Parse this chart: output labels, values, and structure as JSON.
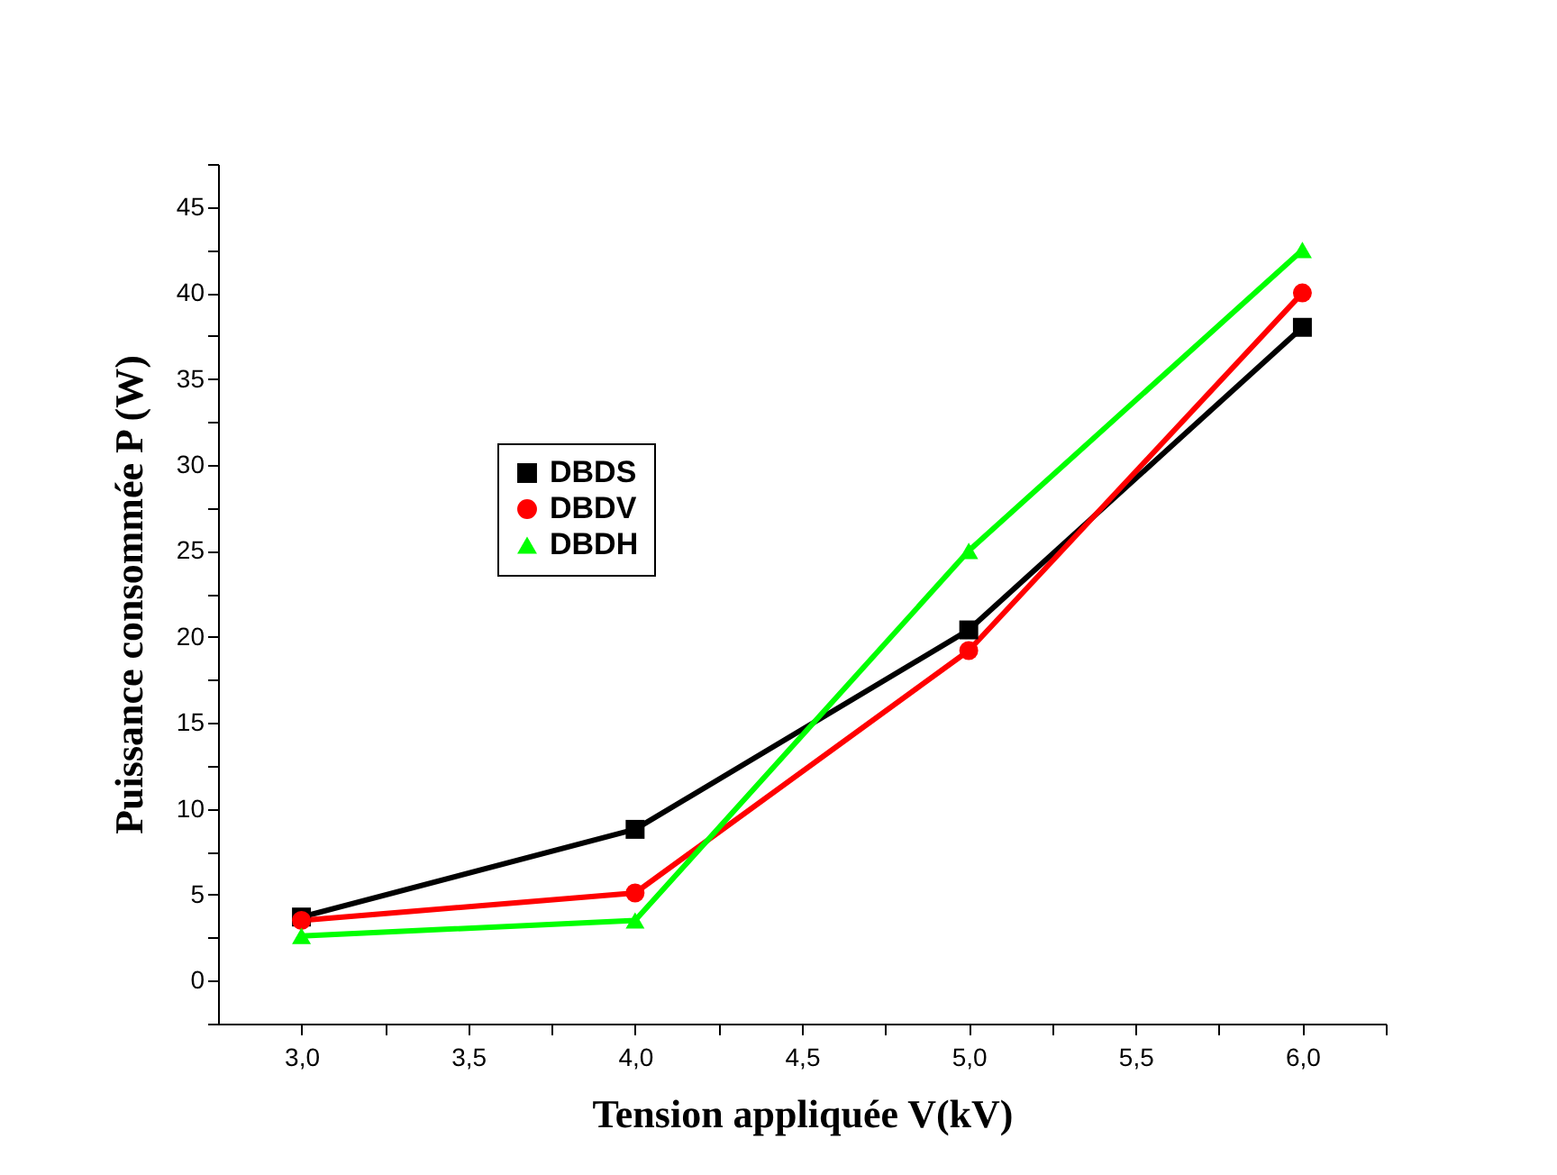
{
  "chart_data": {
    "type": "line",
    "xlabel": "Tension appliquée V(kV)",
    "ylabel": "Puissance consommée P (W)",
    "x": [
      3,
      4,
      5,
      6
    ],
    "series": [
      {
        "name": "DBDS",
        "color": "#000000",
        "marker": "square",
        "values": [
          3.7,
          8.8,
          20.4,
          38.0
        ]
      },
      {
        "name": "DBDV",
        "color": "#ff0000",
        "marker": "circle",
        "values": [
          3.5,
          5.1,
          19.2,
          40.0
        ]
      },
      {
        "name": "DBDH",
        "color": "#00ff00",
        "marker": "triangle",
        "values": [
          2.6,
          3.5,
          25.0,
          42.5
        ]
      }
    ],
    "xlim": [
      2.75,
      6.25
    ],
    "xticks": [
      {
        "value": 3,
        "label": "3,0"
      },
      {
        "value": 3.25,
        "label": null
      },
      {
        "value": 3.5,
        "label": "3,5"
      },
      {
        "value": 3.75,
        "label": null
      },
      {
        "value": 4,
        "label": "4,0"
      },
      {
        "value": 4.25,
        "label": null
      },
      {
        "value": 4.5,
        "label": "4,5"
      },
      {
        "value": 4.75,
        "label": null
      },
      {
        "value": 5,
        "label": "5,0"
      },
      {
        "value": 5.25,
        "label": null
      },
      {
        "value": 5.5,
        "label": "5,5"
      },
      {
        "value": 5.75,
        "label": null
      },
      {
        "value": 6,
        "label": "6,0"
      },
      {
        "value": 6.25,
        "label": null
      }
    ],
    "ylim": [
      -2.5,
      47.5
    ],
    "yticks": [
      {
        "value": -2.5,
        "label": null
      },
      0,
      {
        "value": 2.5,
        "label": null
      },
      5,
      {
        "value": 7.5,
        "label": null
      },
      10,
      {
        "value": 12.5,
        "label": null
      },
      15,
      {
        "value": 17.5,
        "label": null
      },
      20,
      {
        "value": 22.5,
        "label": null
      },
      25,
      {
        "value": 27.5,
        "label": null
      },
      30,
      {
        "value": 32.5,
        "label": null
      },
      35,
      {
        "value": 37.5,
        "label": null
      },
      40,
      {
        "value": 42.5,
        "label": null
      },
      45,
      {
        "value": 47.5,
        "label": null
      }
    ],
    "grid": false,
    "legend": "top left",
    "line_style": "solid"
  }
}
